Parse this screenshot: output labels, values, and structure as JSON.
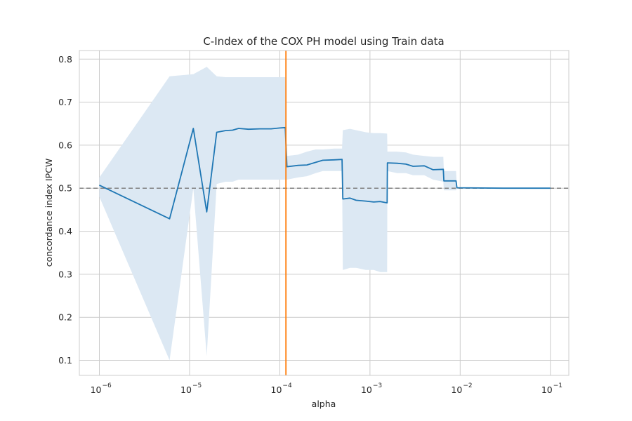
{
  "chart_data": {
    "type": "line",
    "title": "C-Index of the COX PH model using Train data",
    "xlabel": "alpha",
    "ylabel": "concordance index IPCW",
    "x_scale": "log",
    "xlim": [
      6e-07,
      0.16
    ],
    "ylim": [
      0.065,
      0.82
    ],
    "x_ticks": [
      {
        "value": 1e-06,
        "base": "10",
        "exp": "−6"
      },
      {
        "value": 1e-05,
        "base": "10",
        "exp": "−5"
      },
      {
        "value": 0.0001,
        "base": "10",
        "exp": "−4"
      },
      {
        "value": 0.001,
        "base": "10",
        "exp": "−3"
      },
      {
        "value": 0.01,
        "base": "10",
        "exp": "−2"
      },
      {
        "value": 0.1,
        "base": "10",
        "exp": "−1"
      }
    ],
    "y_ticks": [
      {
        "value": 0.1,
        "label": "0.1"
      },
      {
        "value": 0.2,
        "label": "0.2"
      },
      {
        "value": 0.3,
        "label": "0.3"
      },
      {
        "value": 0.4,
        "label": "0.4"
      },
      {
        "value": 0.5,
        "label": "0.5"
      },
      {
        "value": 0.6,
        "label": "0.6"
      },
      {
        "value": 0.7,
        "label": "0.7"
      },
      {
        "value": 0.8,
        "label": "0.8"
      }
    ],
    "grid": true,
    "series": [
      {
        "color": "#1f77b4",
        "band_color": "#dce8f3",
        "points": [
          {
            "x": 1e-06,
            "y": 0.507,
            "lo": 0.48,
            "hi": 0.525
          },
          {
            "x": 6e-06,
            "y": 0.429,
            "lo": 0.1,
            "hi": 0.76
          },
          {
            "x": 1.1e-05,
            "y": 0.639,
            "lo": 0.5,
            "hi": 0.765
          },
          {
            "x": 1.55e-05,
            "y": 0.445,
            "lo": 0.11,
            "hi": 0.782
          },
          {
            "x": 2e-05,
            "y": 0.63,
            "lo": 0.51,
            "hi": 0.76
          },
          {
            "x": 2.5e-05,
            "y": 0.634,
            "lo": 0.515,
            "hi": 0.758
          },
          {
            "x": 3e-05,
            "y": 0.635,
            "lo": 0.515,
            "hi": 0.758
          },
          {
            "x": 3.5e-05,
            "y": 0.639,
            "lo": 0.52,
            "hi": 0.758
          },
          {
            "x": 4.5e-05,
            "y": 0.637,
            "lo": 0.52,
            "hi": 0.758
          },
          {
            "x": 6e-05,
            "y": 0.638,
            "lo": 0.52,
            "hi": 0.758
          },
          {
            "x": 8e-05,
            "y": 0.638,
            "lo": 0.52,
            "hi": 0.758
          },
          {
            "x": 0.0001,
            "y": 0.64,
            "lo": 0.52,
            "hi": 0.758
          },
          {
            "x": 0.000115,
            "y": 0.641,
            "lo": 0.52,
            "hi": 0.758
          },
          {
            "x": 0.00012,
            "y": 0.55,
            "lo": 0.52,
            "hi": 0.575
          },
          {
            "x": 0.00016,
            "y": 0.553,
            "lo": 0.525,
            "hi": 0.578
          },
          {
            "x": 0.0002,
            "y": 0.554,
            "lo": 0.528,
            "hi": 0.585
          },
          {
            "x": 0.00025,
            "y": 0.56,
            "lo": 0.535,
            "hi": 0.59
          },
          {
            "x": 0.0003,
            "y": 0.565,
            "lo": 0.54,
            "hi": 0.59
          },
          {
            "x": 0.0004,
            "y": 0.566,
            "lo": 0.54,
            "hi": 0.592
          },
          {
            "x": 0.00049,
            "y": 0.567,
            "lo": 0.54,
            "hi": 0.592
          },
          {
            "x": 0.0005,
            "y": 0.475,
            "lo": 0.31,
            "hi": 0.635
          },
          {
            "x": 0.0006,
            "y": 0.477,
            "lo": 0.315,
            "hi": 0.638
          },
          {
            "x": 0.0007,
            "y": 0.472,
            "lo": 0.315,
            "hi": 0.635
          },
          {
            "x": 0.0009,
            "y": 0.47,
            "lo": 0.31,
            "hi": 0.63
          },
          {
            "x": 0.0011,
            "y": 0.468,
            "lo": 0.31,
            "hi": 0.628
          },
          {
            "x": 0.0013,
            "y": 0.469,
            "lo": 0.305,
            "hi": 0.628
          },
          {
            "x": 0.00155,
            "y": 0.466,
            "lo": 0.305,
            "hi": 0.627
          },
          {
            "x": 0.00156,
            "y": 0.559,
            "lo": 0.54,
            "hi": 0.585
          },
          {
            "x": 0.002,
            "y": 0.558,
            "lo": 0.535,
            "hi": 0.585
          },
          {
            "x": 0.0025,
            "y": 0.556,
            "lo": 0.535,
            "hi": 0.583
          },
          {
            "x": 0.003,
            "y": 0.551,
            "lo": 0.53,
            "hi": 0.578
          },
          {
            "x": 0.004,
            "y": 0.552,
            "lo": 0.53,
            "hi": 0.575
          },
          {
            "x": 0.005,
            "y": 0.543,
            "lo": 0.52,
            "hi": 0.573
          },
          {
            "x": 0.0065,
            "y": 0.544,
            "lo": 0.515,
            "hi": 0.573
          },
          {
            "x": 0.0066,
            "y": 0.517,
            "lo": 0.495,
            "hi": 0.54
          },
          {
            "x": 0.009,
            "y": 0.517,
            "lo": 0.495,
            "hi": 0.54
          },
          {
            "x": 0.0092,
            "y": 0.501,
            "lo": 0.5,
            "hi": 0.502
          },
          {
            "x": 0.03,
            "y": 0.5,
            "lo": 0.5,
            "hi": 0.501
          },
          {
            "x": 0.1,
            "y": 0.5,
            "lo": 0.5,
            "hi": 0.501
          }
        ]
      }
    ],
    "reference_lines": [
      {
        "orientation": "horizontal",
        "value": 0.5,
        "color": "#808080",
        "style": "dashed"
      },
      {
        "orientation": "vertical",
        "value": 0.000117,
        "color": "#ff7f0e",
        "style": "solid"
      }
    ]
  }
}
